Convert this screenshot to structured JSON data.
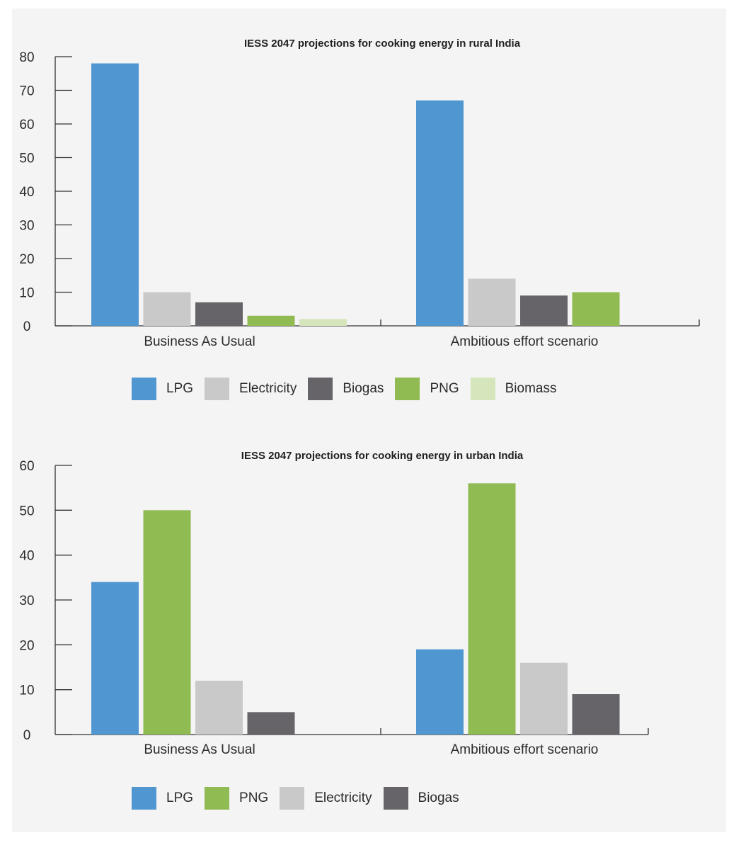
{
  "chart_data": [
    {
      "type": "bar",
      "title": "IESS 2047 projections for cooking energy in rural India",
      "categories": [
        "Business As Usual",
        "Ambitious effort scenario"
      ],
      "ylim": [
        0,
        80
      ],
      "yticks": [
        0,
        10,
        20,
        30,
        40,
        50,
        60,
        70,
        80
      ],
      "grid": false,
      "legend_position": "bottom",
      "series": [
        {
          "name": "LPG",
          "color": "#5097d1",
          "values": [
            78,
            67
          ]
        },
        {
          "name": "Electricity",
          "color": "#c9c9c9",
          "values": [
            10,
            14
          ]
        },
        {
          "name": "Biogas",
          "color": "#666468",
          "values": [
            7,
            9
          ]
        },
        {
          "name": "PNG",
          "color": "#8fbb52",
          "values": [
            3,
            10
          ]
        },
        {
          "name": "Biomass",
          "color": "#d5e6bd",
          "values": [
            2,
            null
          ]
        }
      ]
    },
    {
      "type": "bar",
      "title": "IESS 2047 projections for cooking energy in urban India",
      "categories": [
        "Business As Usual",
        "Ambitious effort scenario"
      ],
      "ylim": [
        0,
        60
      ],
      "yticks": [
        0,
        10,
        20,
        30,
        40,
        50,
        60
      ],
      "grid": false,
      "legend_position": "bottom",
      "series": [
        {
          "name": "LPG",
          "color": "#5097d1",
          "values": [
            34,
            19
          ]
        },
        {
          "name": "PNG",
          "color": "#8fbb52",
          "values": [
            50,
            56
          ]
        },
        {
          "name": "Electricity",
          "color": "#c9c9c9",
          "values": [
            12,
            16
          ]
        },
        {
          "name": "Biogas",
          "color": "#666468",
          "values": [
            5,
            9
          ]
        }
      ]
    }
  ]
}
